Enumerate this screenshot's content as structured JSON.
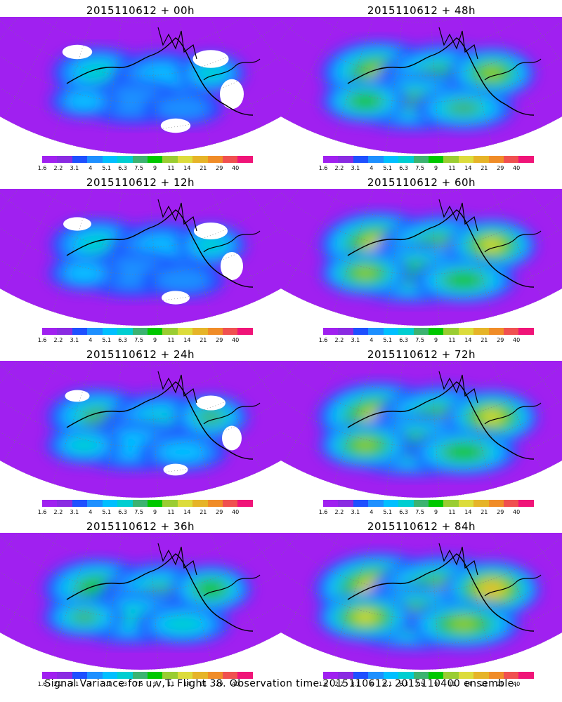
{
  "panels": [
    {
      "title": "2015110612 + 00h",
      "intensity": 0.35
    },
    {
      "title": "2015110612 + 48h",
      "intensity": 0.7
    },
    {
      "title": "2015110612 + 12h",
      "intensity": 0.4
    },
    {
      "title": "2015110612 + 60h",
      "intensity": 0.75
    },
    {
      "title": "2015110612 + 24h",
      "intensity": 0.5
    },
    {
      "title": "2015110612 + 72h",
      "intensity": 0.82
    },
    {
      "title": "2015110612 + 36h",
      "intensity": 0.6
    },
    {
      "title": "2015110612 + 84h",
      "intensity": 0.9
    }
  ],
  "colorbar": {
    "labels": [
      "1.6",
      "2.2",
      "3.1",
      "4",
      "5.1",
      "6.3",
      "7.5",
      "9",
      "11",
      "14",
      "21",
      "29",
      "40"
    ],
    "colors": [
      "#a020f0",
      "#8a2be2",
      "#1e50ff",
      "#1e90ff",
      "#00bfff",
      "#00ced1",
      "#3cb371",
      "#00c800",
      "#9acd32",
      "#dcdc3c",
      "#e6b428",
      "#f08c28",
      "#f05050",
      "#f01478"
    ]
  },
  "footer": "Signal Variance for u,v,T. Flight 38. Observation time 2015110612. 2015110400 ensemble."
}
